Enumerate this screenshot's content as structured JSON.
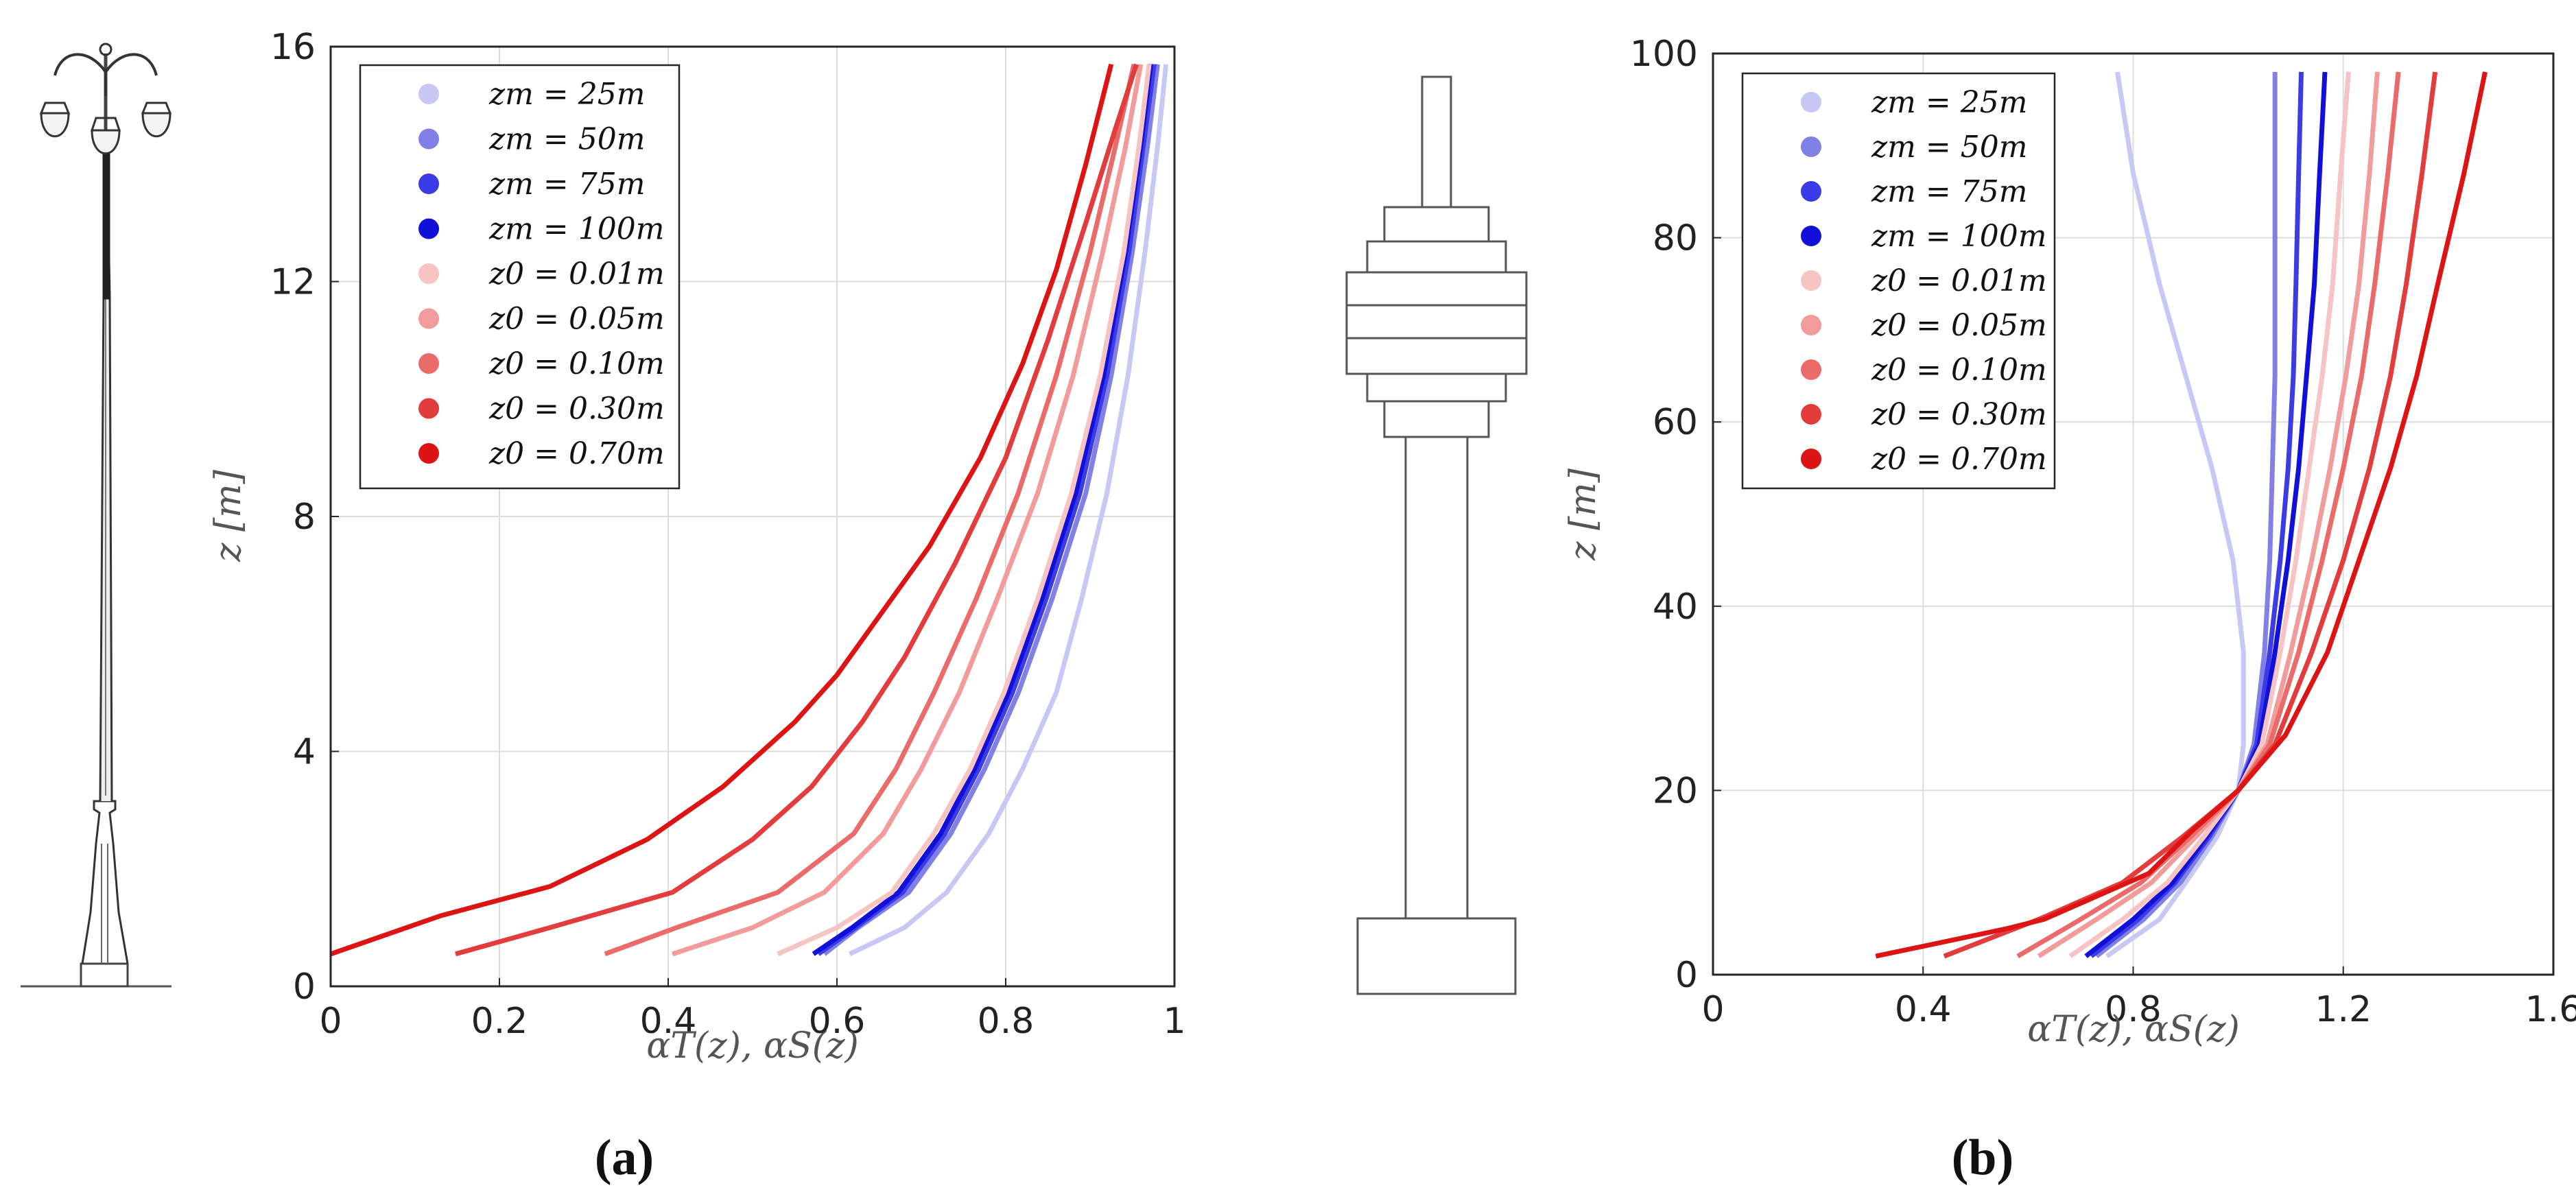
{
  "panels": {
    "a": {
      "caption": "(a)"
    },
    "b": {
      "caption": "(b)"
    }
  },
  "chart_data": [
    {
      "type": "line",
      "id": "a",
      "xlabel": "αT(z),  αS(z)",
      "ylabel": "z [m]",
      "xlim": [
        0,
        1
      ],
      "ylim": [
        0,
        16
      ],
      "xticks": [
        0,
        0.2,
        0.4,
        0.6,
        0.8,
        1
      ],
      "xtick_labels": [
        "0",
        "0.2",
        "0.4",
        "0.6",
        "0.8",
        "1"
      ],
      "yticks": [
        0,
        4,
        8,
        12,
        16
      ],
      "ytick_labels": [
        "0",
        "4",
        "8",
        "12",
        "16"
      ],
      "grid": true,
      "legend_position": "top-left",
      "series": [
        {
          "name": "zm = 25m",
          "color": "#c8c8f4",
          "points": [
            [
              0.615,
              0.55
            ],
            [
              0.68,
              1.0
            ],
            [
              0.73,
              1.6
            ],
            [
              0.78,
              2.6
            ],
            [
              0.82,
              3.7
            ],
            [
              0.86,
              5.0
            ],
            [
              0.89,
              6.6
            ],
            [
              0.92,
              8.4
            ],
            [
              0.945,
              10.4
            ],
            [
              0.965,
              12.5
            ],
            [
              0.98,
              14.3
            ],
            [
              0.99,
              15.7
            ]
          ]
        },
        {
          "name": "zm = 50m",
          "color": "#8080e6",
          "points": [
            [
              0.585,
              0.55
            ],
            [
              0.625,
              1.0
            ],
            [
              0.685,
              1.6
            ],
            [
              0.735,
              2.6
            ],
            [
              0.775,
              3.7
            ],
            [
              0.815,
              5.0
            ],
            [
              0.855,
              6.6
            ],
            [
              0.895,
              8.4
            ],
            [
              0.925,
              10.4
            ],
            [
              0.95,
              12.5
            ],
            [
              0.968,
              14.3
            ],
            [
              0.98,
              15.7
            ]
          ]
        },
        {
          "name": "zm = 75m",
          "color": "#3c3ce6",
          "points": [
            [
              0.578,
              0.55
            ],
            [
              0.622,
              1.0
            ],
            [
              0.678,
              1.6
            ],
            [
              0.728,
              2.6
            ],
            [
              0.768,
              3.7
            ],
            [
              0.808,
              5.0
            ],
            [
              0.848,
              6.6
            ],
            [
              0.888,
              8.4
            ],
            [
              0.92,
              10.4
            ],
            [
              0.946,
              12.5
            ],
            [
              0.963,
              14.3
            ],
            [
              0.976,
              15.7
            ]
          ]
        },
        {
          "name": "zm = 100m",
          "color": "#1010d8",
          "points": [
            [
              0.572,
              0.55
            ],
            [
              0.618,
              1.0
            ],
            [
              0.673,
              1.6
            ],
            [
              0.723,
              2.6
            ],
            [
              0.763,
              3.7
            ],
            [
              0.803,
              5.0
            ],
            [
              0.843,
              6.6
            ],
            [
              0.883,
              8.4
            ],
            [
              0.916,
              10.4
            ],
            [
              0.942,
              12.5
            ],
            [
              0.96,
              14.3
            ],
            [
              0.972,
              15.7
            ]
          ]
        },
        {
          "name": "z0 = 0.01m",
          "color": "#f7c4c4",
          "points": [
            [
              0.53,
              0.55
            ],
            [
              0.6,
              1.0
            ],
            [
              0.665,
              1.6
            ],
            [
              0.715,
              2.6
            ],
            [
              0.758,
              3.7
            ],
            [
              0.798,
              5.0
            ],
            [
              0.838,
              6.6
            ],
            [
              0.878,
              8.4
            ],
            [
              0.912,
              10.4
            ],
            [
              0.94,
              12.5
            ],
            [
              0.958,
              14.3
            ],
            [
              0.97,
              15.7
            ]
          ]
        },
        {
          "name": "z0 = 0.05m",
          "color": "#f29b9b",
          "points": [
            [
              0.405,
              0.55
            ],
            [
              0.5,
              1.0
            ],
            [
              0.585,
              1.6
            ],
            [
              0.655,
              2.6
            ],
            [
              0.7,
              3.7
            ],
            [
              0.745,
              5.0
            ],
            [
              0.79,
              6.6
            ],
            [
              0.838,
              8.4
            ],
            [
              0.88,
              10.4
            ],
            [
              0.915,
              12.5
            ],
            [
              0.942,
              14.3
            ],
            [
              0.96,
              15.7
            ]
          ]
        },
        {
          "name": "z0 = 0.10m",
          "color": "#eb6b6b",
          "points": [
            [
              0.325,
              0.55
            ],
            [
              0.41,
              1.0
            ],
            [
              0.53,
              1.6
            ],
            [
              0.62,
              2.6
            ],
            [
              0.67,
              3.7
            ],
            [
              0.715,
              5.0
            ],
            [
              0.765,
              6.6
            ],
            [
              0.815,
              8.4
            ],
            [
              0.86,
              10.4
            ],
            [
              0.9,
              12.5
            ],
            [
              0.93,
              14.3
            ],
            [
              0.952,
              15.7
            ]
          ]
        },
        {
          "name": "z0 = 0.30m",
          "color": "#e23c3c",
          "points": [
            [
              0.148,
              0.55
            ],
            [
              0.26,
              1.0
            ],
            [
              0.405,
              1.6
            ],
            [
              0.5,
              2.5
            ],
            [
              0.57,
              3.4
            ],
            [
              0.63,
              4.5
            ],
            [
              0.68,
              5.6
            ],
            [
              0.74,
              7.2
            ],
            [
              0.8,
              9.0
            ],
            [
              0.85,
              11.0
            ],
            [
              0.895,
              13.0
            ],
            [
              0.93,
              14.6
            ],
            [
              0.955,
              15.7
            ]
          ]
        },
        {
          "name": "z0 = 0.70m",
          "color": "#dc1414",
          "points": [
            [
              0.0,
              0.55
            ],
            [
              0.13,
              1.2
            ],
            [
              0.26,
              1.7
            ],
            [
              0.375,
              2.5
            ],
            [
              0.465,
              3.4
            ],
            [
              0.55,
              4.5
            ],
            [
              0.6,
              5.3
            ],
            [
              0.66,
              6.5
            ],
            [
              0.71,
              7.5
            ],
            [
              0.77,
              9.0
            ],
            [
              0.82,
              10.6
            ],
            [
              0.86,
              12.2
            ],
            [
              0.895,
              14.0
            ],
            [
              0.925,
              15.7
            ]
          ]
        }
      ]
    },
    {
      "type": "line",
      "id": "b",
      "xlabel": "αT(z),  αS(z)",
      "ylabel": "z [m]",
      "xlim": [
        0,
        1.6
      ],
      "ylim": [
        0,
        100
      ],
      "xticks": [
        0,
        0.4,
        0.8,
        1.2,
        1.6
      ],
      "xtick_labels": [
        "0",
        "0.4",
        "0.8",
        "1.2",
        "1.6"
      ],
      "yticks": [
        0,
        20,
        40,
        60,
        80,
        100
      ],
      "ytick_labels": [
        "0",
        "20",
        "40",
        "60",
        "80",
        "100"
      ],
      "grid": true,
      "legend_position": "top-left",
      "series": [
        {
          "name": "zm = 25m",
          "color": "#c8c8f4",
          "points": [
            [
              0.75,
              2
            ],
            [
              0.85,
              6
            ],
            [
              0.9,
              10
            ],
            [
              0.96,
              15
            ],
            [
              1.0,
              20
            ],
            [
              1.01,
              25
            ],
            [
              1.01,
              35
            ],
            [
              0.99,
              45
            ],
            [
              0.95,
              55
            ],
            [
              0.9,
              65
            ],
            [
              0.85,
              75
            ],
            [
              0.8,
              87
            ],
            [
              0.77,
              98
            ]
          ]
        },
        {
          "name": "zm = 50m",
          "color": "#8080e6",
          "points": [
            [
              0.73,
              2
            ],
            [
              0.82,
              6
            ],
            [
              0.89,
              10
            ],
            [
              0.95,
              15
            ],
            [
              1.0,
              20
            ],
            [
              1.03,
              25
            ],
            [
              1.05,
              35
            ],
            [
              1.06,
              45
            ],
            [
              1.065,
              55
            ],
            [
              1.07,
              65
            ],
            [
              1.07,
              75
            ],
            [
              1.07,
              87
            ],
            [
              1.07,
              98
            ]
          ]
        },
        {
          "name": "zm = 75m",
          "color": "#3c3ce6",
          "points": [
            [
              0.72,
              2
            ],
            [
              0.81,
              6
            ],
            [
              0.88,
              10
            ],
            [
              0.945,
              15
            ],
            [
              1.0,
              20
            ],
            [
              1.035,
              25
            ],
            [
              1.06,
              35
            ],
            [
              1.08,
              45
            ],
            [
              1.095,
              55
            ],
            [
              1.105,
              65
            ],
            [
              1.11,
              75
            ],
            [
              1.115,
              87
            ],
            [
              1.12,
              98
            ]
          ]
        },
        {
          "name": "zm = 100m",
          "color": "#1010d8",
          "points": [
            [
              0.71,
              2
            ],
            [
              0.8,
              6
            ],
            [
              0.875,
              10
            ],
            [
              0.94,
              15
            ],
            [
              1.0,
              20
            ],
            [
              1.04,
              25
            ],
            [
              1.07,
              35
            ],
            [
              1.095,
              45
            ],
            [
              1.115,
              55
            ],
            [
              1.13,
              65
            ],
            [
              1.145,
              75
            ],
            [
              1.155,
              87
            ],
            [
              1.165,
              98
            ]
          ]
        },
        {
          "name": "z0 = 0.01m",
          "color": "#f7c4c4",
          "points": [
            [
              0.68,
              2
            ],
            [
              0.78,
              6
            ],
            [
              0.865,
              10
            ],
            [
              0.935,
              15
            ],
            [
              1.0,
              20
            ],
            [
              1.045,
              25
            ],
            [
              1.08,
              35
            ],
            [
              1.11,
              45
            ],
            [
              1.135,
              55
            ],
            [
              1.16,
              65
            ],
            [
              1.18,
              75
            ],
            [
              1.195,
              87
            ],
            [
              1.21,
              98
            ]
          ]
        },
        {
          "name": "z0 = 0.05m",
          "color": "#f29b9b",
          "points": [
            [
              0.62,
              2
            ],
            [
              0.73,
              6
            ],
            [
              0.835,
              10
            ],
            [
              0.92,
              15
            ],
            [
              1.0,
              20
            ],
            [
              1.055,
              25
            ],
            [
              1.1,
              35
            ],
            [
              1.14,
              45
            ],
            [
              1.175,
              55
            ],
            [
              1.205,
              65
            ],
            [
              1.23,
              75
            ],
            [
              1.25,
              87
            ],
            [
              1.265,
              98
            ]
          ]
        },
        {
          "name": "z0 = 0.10m",
          "color": "#eb6b6b",
          "points": [
            [
              0.58,
              2
            ],
            [
              0.7,
              6
            ],
            [
              0.815,
              10
            ],
            [
              0.91,
              15
            ],
            [
              1.0,
              20
            ],
            [
              1.06,
              25
            ],
            [
              1.115,
              35
            ],
            [
              1.16,
              45
            ],
            [
              1.2,
              55
            ],
            [
              1.235,
              65
            ],
            [
              1.26,
              75
            ],
            [
              1.285,
              87
            ],
            [
              1.305,
              98
            ]
          ]
        },
        {
          "name": "z0 = 0.30m",
          "color": "#e23c3c",
          "points": [
            [
              0.44,
              2
            ],
            [
              0.62,
              6
            ],
            [
              0.78,
              10
            ],
            [
              0.895,
              15
            ],
            [
              1.0,
              20
            ],
            [
              1.07,
              25
            ],
            [
              1.14,
              35
            ],
            [
              1.2,
              45
            ],
            [
              1.25,
              55
            ],
            [
              1.29,
              65
            ],
            [
              1.32,
              75
            ],
            [
              1.35,
              87
            ],
            [
              1.375,
              98
            ]
          ]
        },
        {
          "name": "z0 = 0.70m",
          "color": "#dc1414",
          "points": [
            [
              0.31,
              2
            ],
            [
              0.56,
              5
            ],
            [
              0.63,
              6
            ],
            [
              0.83,
              11
            ],
            [
              0.91,
              15.5
            ],
            [
              1.0,
              20
            ],
            [
              1.09,
              26
            ],
            [
              1.17,
              35
            ],
            [
              1.23,
              45
            ],
            [
              1.29,
              55
            ],
            [
              1.34,
              65
            ],
            [
              1.38,
              75
            ],
            [
              1.43,
              87
            ],
            [
              1.47,
              98
            ]
          ]
        }
      ]
    }
  ]
}
